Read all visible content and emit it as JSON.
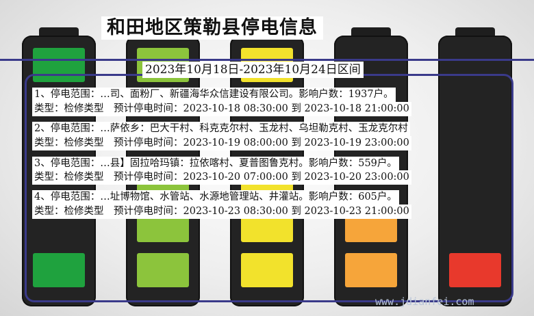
{
  "title": "和田地区策勒县停电信息",
  "date_range": "2023年10月18日-2023年10月24日区间",
  "colors": {
    "frame": "#3a3a8a",
    "battery_1": "#1fa23e",
    "battery_2": "#8cc43c",
    "battery_3": "#f2e22c",
    "battery_4": "#f6a53a",
    "battery_5": "#e8392c"
  },
  "records": [
    {
      "line1": "1、停电范围：…司、面粉厂、新疆海华众信建设有限公司。影响户数：1937户。",
      "line2": "类型：检修类型　预计停电时间：2023-10-18 08:30:00 到 2023-10-18 21:00:00"
    },
    {
      "line1": "2、停电范围：…萨依乡：巴大干村、科克克尔村、玉龙村、乌坦勒克村、玉龙克尔村",
      "line2": "类型：检修类型　预计停电时间：2023-10-19 08:00:00 到 2023-10-19 23:00:00"
    },
    {
      "line1": "3、停电范围：…县】固拉哈玛镇：拉依喀村、夏普图鲁克村。影响户数：559户。",
      "line2": "类型：检修类型　预计停电时间：2023-10-20 07:00:00 到 2023-10-20 23:00:00"
    },
    {
      "line1": "4、停电范围：…址博物馆、水管站、水源地管理站、井灌站。影响户数：605户。",
      "line2": "类型：检修类型　预计停电时间：2023-10-23 08:30:00 到 2023-10-23 21:00:00"
    }
  ],
  "watermark": "www.jdianfei.com"
}
